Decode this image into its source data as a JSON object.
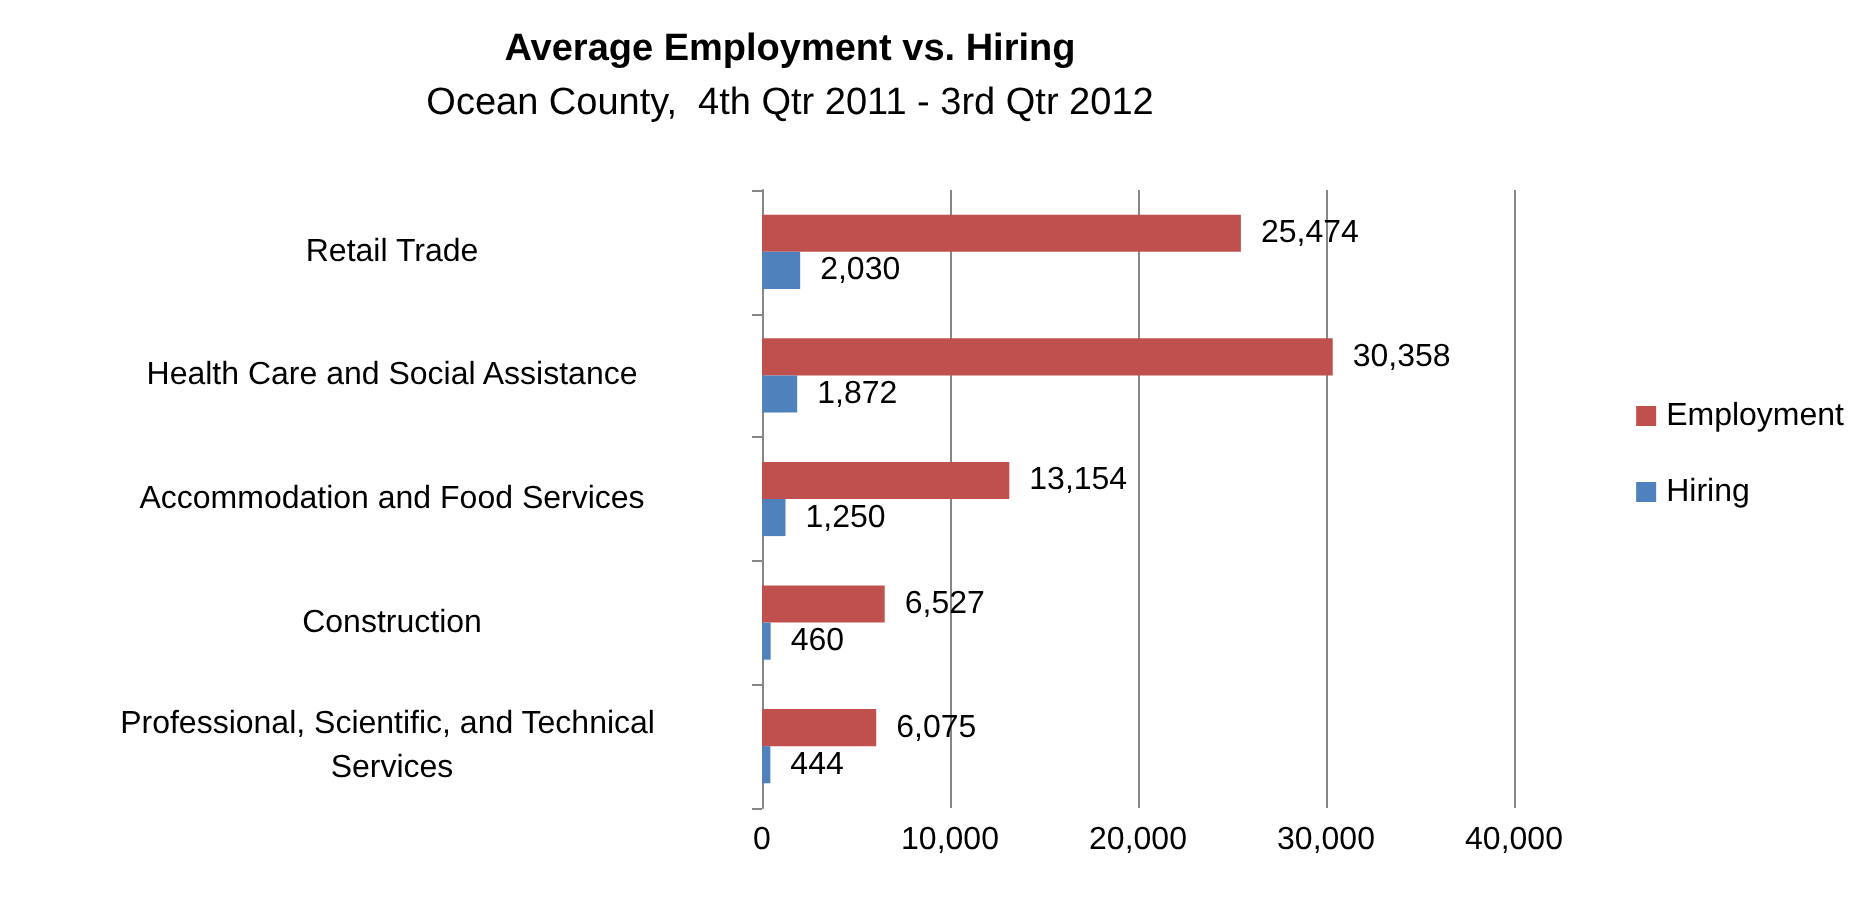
{
  "chart_data": {
    "type": "bar",
    "orientation": "horizontal",
    "title": "Average Employment vs. Hiring",
    "subtitle": "Ocean County,  4th Qtr 2011 - 3rd Qtr 2012",
    "categories": [
      "Retail Trade",
      "Health Care and Social Assistance",
      "Accommodation and Food Services",
      "Construction",
      "Professional, Scientific, and Technical Services"
    ],
    "series": [
      {
        "name": "Employment",
        "color": "#c0504d",
        "values": [
          25474,
          30358,
          13154,
          6527,
          6075
        ],
        "value_labels": [
          "25,474",
          "30,358",
          "13,154",
          "6,527",
          "6,075"
        ]
      },
      {
        "name": "Hiring",
        "color": "#4f81bd",
        "values": [
          2030,
          1872,
          1250,
          460,
          444
        ],
        "value_labels": [
          "2,030",
          "1,872",
          "1,250",
          "460",
          "444"
        ]
      }
    ],
    "xlim": [
      0,
      40000
    ],
    "xticks": [
      0,
      {
        "value": 10000,
        "label": "10,000"
      },
      {
        "value": 20000,
        "label": "20,000"
      },
      {
        "value": 30000,
        "label": "30,000"
      },
      {
        "value": 40000,
        "label": "40,000"
      }
    ],
    "grid": "x",
    "legend": "right"
  }
}
